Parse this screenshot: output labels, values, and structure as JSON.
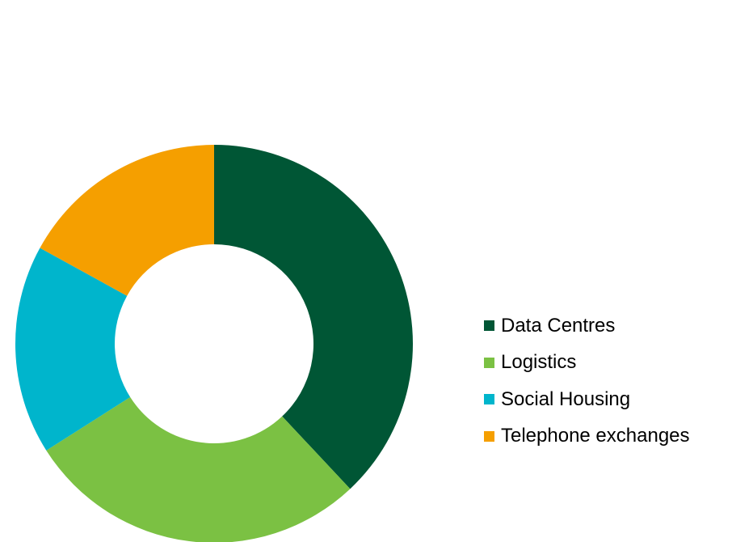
{
  "chart_data": {
    "type": "pie",
    "subtype": "donut",
    "title": "",
    "categories": [
      "Data Centres",
      "Logistics",
      "Social Housing",
      "Telephone exchanges"
    ],
    "values": [
      38,
      28,
      17,
      17
    ],
    "unit": "%",
    "colors": [
      "#005635",
      "#7bc143",
      "#00b5cc",
      "#f59f00"
    ],
    "legend_position": "right",
    "start_angle": "12 o'clock",
    "direction": "clockwise",
    "data_labels": false
  }
}
